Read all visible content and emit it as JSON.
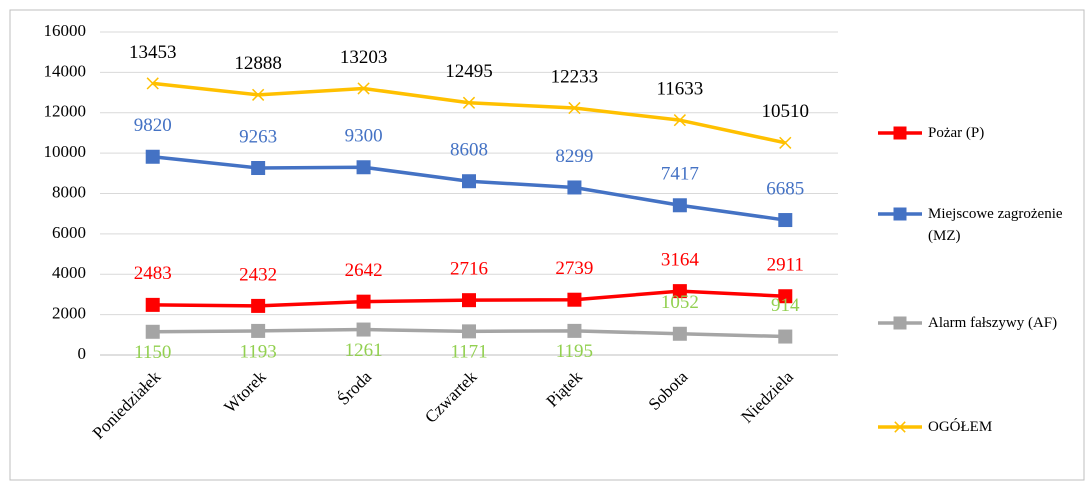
{
  "chart_data": {
    "type": "line",
    "categories": [
      "Poniedziałek",
      "Wtorek",
      "Środa",
      "Czwartek",
      "Piątek",
      "Sobota",
      "Niedziela"
    ],
    "series": [
      {
        "name": "Pożar (P)",
        "color": "#ff0000",
        "marker": "square",
        "label_color": "#ff0000",
        "values": [
          2483,
          2432,
          2642,
          2716,
          2739,
          3164,
          2911
        ]
      },
      {
        "name": "Miejscowe zagrożenie (MZ)",
        "color": "#4472c4",
        "marker": "square",
        "label_color": "#4472c4",
        "values": [
          9820,
          9263,
          9300,
          8608,
          8299,
          7417,
          6685
        ]
      },
      {
        "name": "Alarm fałszywy (AF)",
        "color": "#a5a5a5",
        "marker": "square",
        "label_color": "#92d050",
        "values": [
          1150,
          1193,
          1261,
          1171,
          1195,
          1052,
          914
        ]
      },
      {
        "name": "OGÓŁEM",
        "color": "#ffc000",
        "marker": "x",
        "label_color": "#000000",
        "values": [
          13453,
          12888,
          13203,
          12495,
          12233,
          11633,
          10510
        ]
      }
    ],
    "ylim": [
      0,
      16000
    ],
    "yticks": [
      0,
      2000,
      4000,
      6000,
      8000,
      10000,
      12000,
      14000,
      16000
    ],
    "grid": true,
    "legend": "right"
  }
}
